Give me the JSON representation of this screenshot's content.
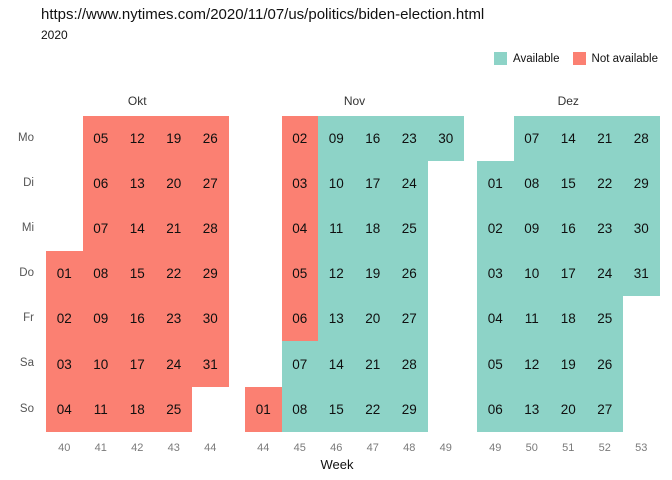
{
  "chart_data": {
    "type": "heatmap",
    "title": "https://www.nytimes.com/2020/11/07/us/politics/biden-election.html",
    "subtitle": "2020",
    "xlabel": "Week",
    "legend_position": "top-right",
    "grid": "off",
    "colors": {
      "available": "#8DD3C7",
      "not_available": "#FB8072"
    },
    "dow_labels": [
      "Mo",
      "Di",
      "Mi",
      "Do",
      "Fr",
      "Sa",
      "So"
    ],
    "legend": [
      {
        "label": "Available",
        "color": "#8DD3C7"
      },
      {
        "label": "Not available",
        "color": "#FB8072"
      }
    ],
    "months": [
      {
        "name": "Okt",
        "weeks": [
          "40",
          "41",
          "42",
          "43",
          "44"
        ],
        "rows": [
          [
            null,
            "05N",
            "12N",
            "19N",
            "26N"
          ],
          [
            null,
            "06N",
            "13N",
            "20N",
            "27N"
          ],
          [
            null,
            "07N",
            "14N",
            "21N",
            "28N"
          ],
          [
            "01N",
            "08N",
            "15N",
            "22N",
            "29N"
          ],
          [
            "02N",
            "09N",
            "16N",
            "23N",
            "30N"
          ],
          [
            "03N",
            "10N",
            "17N",
            "24N",
            "31N"
          ],
          [
            "04N",
            "11N",
            "18N",
            "25N",
            null
          ]
        ]
      },
      {
        "name": "Nov",
        "weeks": [
          "44",
          "45",
          "46",
          "47",
          "48",
          "49"
        ],
        "rows": [
          [
            null,
            "02N",
            "09A",
            "16A",
            "23A",
            "30A"
          ],
          [
            null,
            "03N",
            "10A",
            "17A",
            "24A",
            null
          ],
          [
            null,
            "04N",
            "11A",
            "18A",
            "25A",
            null
          ],
          [
            null,
            "05N",
            "12A",
            "19A",
            "26A",
            null
          ],
          [
            null,
            "06N",
            "13A",
            "20A",
            "27A",
            null
          ],
          [
            null,
            "07A",
            "14A",
            "21A",
            "28A",
            null
          ],
          [
            "01N",
            "08A",
            "15A",
            "22A",
            "29A",
            null
          ]
        ]
      },
      {
        "name": "Dez",
        "weeks": [
          "49",
          "50",
          "51",
          "52",
          "53"
        ],
        "rows": [
          [
            null,
            "07A",
            "14A",
            "21A",
            "28A"
          ],
          [
            "01A",
            "08A",
            "15A",
            "22A",
            "29A"
          ],
          [
            "02A",
            "09A",
            "16A",
            "23A",
            "30A"
          ],
          [
            "03A",
            "10A",
            "17A",
            "24A",
            "31A"
          ],
          [
            "04A",
            "11A",
            "18A",
            "25A",
            null
          ],
          [
            "05A",
            "12A",
            "19A",
            "26A",
            null
          ],
          [
            "06A",
            "13A",
            "20A",
            "27A",
            null
          ]
        ]
      }
    ]
  }
}
